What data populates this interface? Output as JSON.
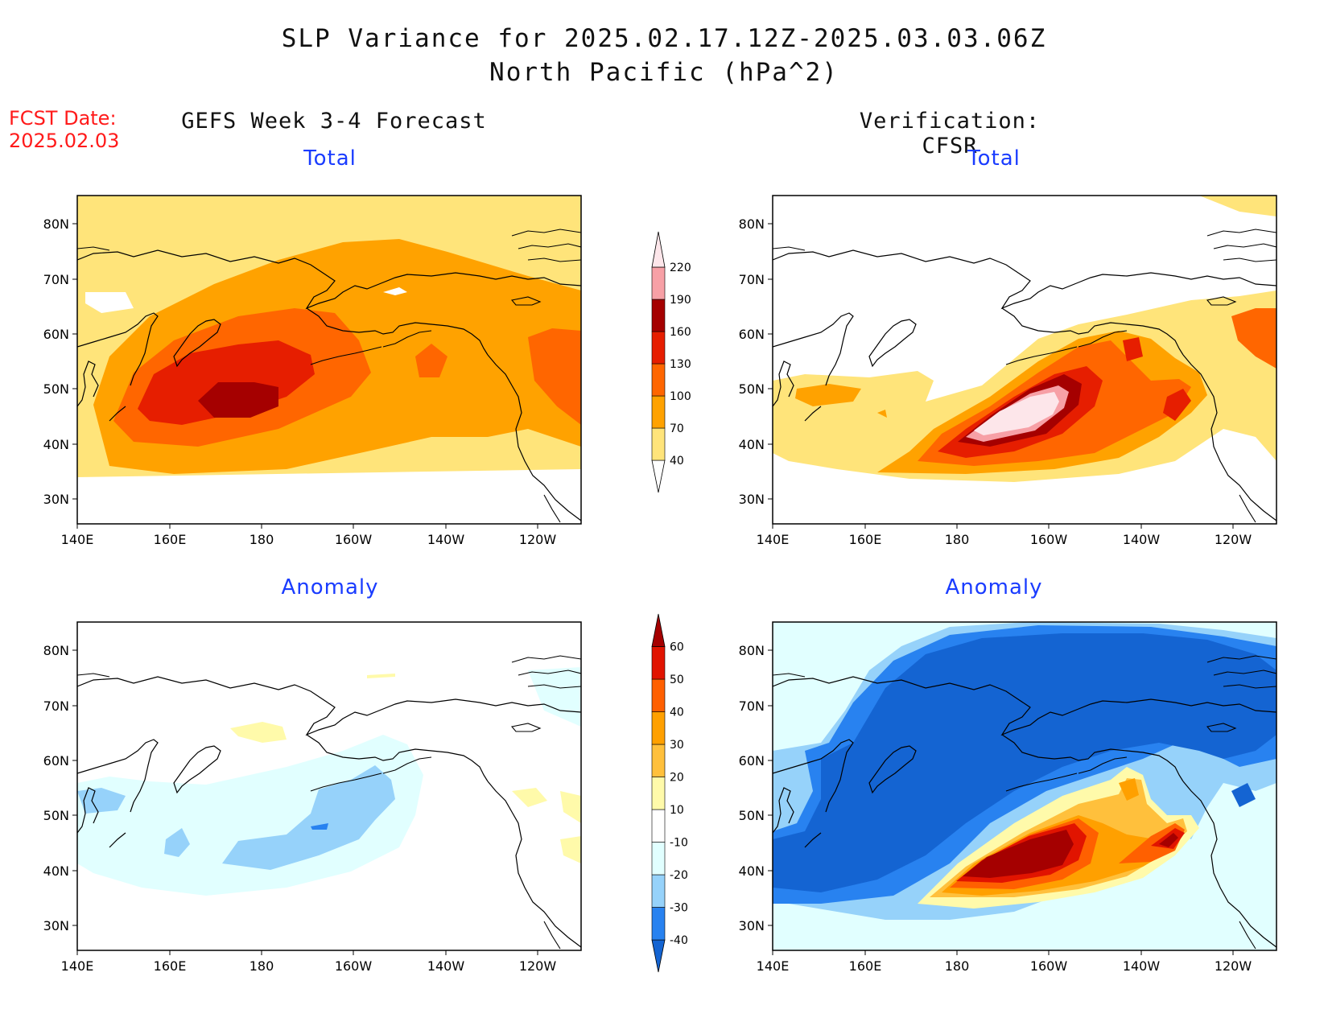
{
  "title_line1": "SLP Variance for 2025.02.17.12Z-2025.03.03.06Z",
  "title_line2": "North Pacific (hPa^2)",
  "fcst_label": "FCST Date:",
  "fcst_value": "2025.02.03",
  "left_column_title": "GEFS Week 3-4 Forecast",
  "right_column_title": "Verification: CFSR",
  "panels": {
    "top_left": "Total",
    "top_right": "Total",
    "bottom_left": "Anomaly",
    "bottom_right": "Anomaly"
  },
  "axes": {
    "lat_labels": [
      "80N",
      "70N",
      "60N",
      "50N",
      "40N",
      "30N"
    ],
    "lon_labels": [
      "140E",
      "160E",
      "180",
      "160W",
      "140W",
      "120W"
    ]
  },
  "total_colorbar": {
    "levels": [
      "40",
      "70",
      "100",
      "130",
      "160",
      "190",
      "220"
    ],
    "colors": [
      "#ffe47a",
      "#ffa200",
      "#ff6600",
      "#e61e00",
      "#a50000",
      "#f7a0a6",
      "#fde6ea"
    ]
  },
  "anomaly_colorbar": {
    "levels": [
      "-40",
      "-30",
      "-20",
      "-10",
      "10",
      "20",
      "30",
      "40",
      "50",
      "60"
    ],
    "colors": [
      "#1464d2",
      "#2882f0",
      "#96d2fa",
      "#e1ffff",
      "#ffffff",
      "#fffaaa",
      "#ffc03c",
      "#ffa000",
      "#ff6000",
      "#e11400",
      "#a50000"
    ]
  }
}
